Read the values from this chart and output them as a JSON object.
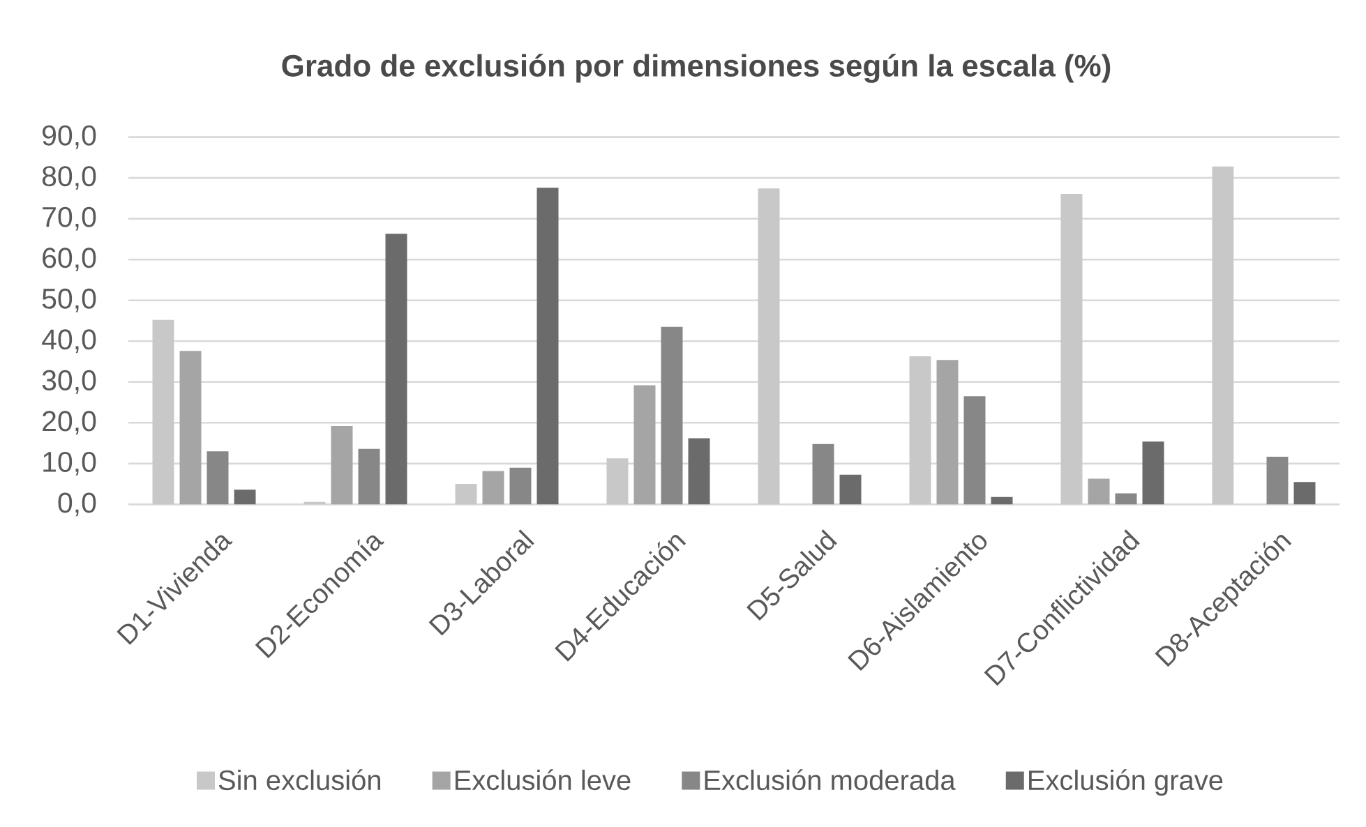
{
  "chart_data": {
    "type": "bar",
    "title": "Grado de exclusión por dimensiones según la escala (%)",
    "categories": [
      "D1-Vivienda",
      "D2-Economía",
      "D3-Laboral",
      "D4-Educación",
      "D5-Salud",
      "D6-Aislamiento",
      "D7-Conflictividad",
      "D8-Aceptación"
    ],
    "series": [
      {
        "name": "Sin exclusión",
        "color": "#c8c8c8",
        "values": [
          45.2,
          0.6,
          5.0,
          11.3,
          77.4,
          36.3,
          76.1,
          82.8
        ]
      },
      {
        "name": "Exclusión leve",
        "color": "#a5a5a5",
        "values": [
          37.6,
          19.2,
          8.2,
          29.2,
          0,
          35.4,
          6.3,
          0
        ]
      },
      {
        "name": "Exclusión moderada",
        "color": "#878787",
        "values": [
          13.0,
          13.6,
          9.0,
          43.5,
          14.8,
          26.5,
          2.7,
          11.7
        ]
      },
      {
        "name": "Exclusión grave",
        "color": "#6b6b6b",
        "values": [
          3.6,
          66.3,
          77.6,
          16.2,
          7.3,
          1.8,
          15.4,
          5.5
        ]
      }
    ],
    "ylim": [
      0,
      90
    ],
    "yticks": [
      {
        "value": 0,
        "label": "0,0"
      },
      {
        "value": 10,
        "label": "10,0"
      },
      {
        "value": 20,
        "label": "20,0"
      },
      {
        "value": 30,
        "label": "30,0"
      },
      {
        "value": 40,
        "label": "40,0"
      },
      {
        "value": 50,
        "label": "50,0"
      },
      {
        "value": 60,
        "label": "60,0"
      },
      {
        "value": 70,
        "label": "70,0"
      },
      {
        "value": 80,
        "label": "80,0"
      },
      {
        "value": 90,
        "label": "90,0"
      }
    ],
    "grid": "y",
    "legend": "bottom"
  }
}
